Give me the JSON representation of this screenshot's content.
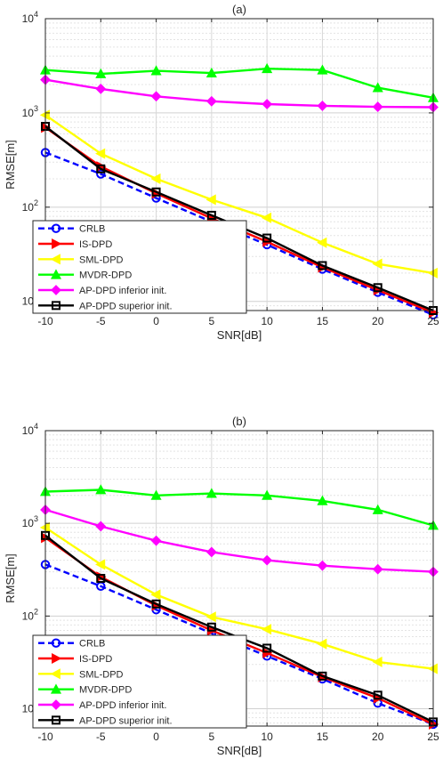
{
  "chart_data": [
    {
      "type": "line",
      "title": "(a)",
      "xlabel": "SNR[dB]",
      "ylabel": "RMSE[m]",
      "yscale": "log",
      "xlim": [
        -10,
        25
      ],
      "ylim": [
        8,
        10000
      ],
      "x": [
        -10,
        -5,
        0,
        5,
        10,
        15,
        20,
        25
      ],
      "x_tick_labels": [
        "-10",
        "-5",
        "0",
        "5",
        "10",
        "15",
        "20",
        "25"
      ],
      "y_ticks": [
        10,
        100,
        1000,
        10000
      ],
      "grid": true,
      "legend_position": "bottom-left",
      "series": [
        {
          "name": "CRLB",
          "color": "#0000ff",
          "dash": "dashed",
          "marker": "circle",
          "values": [
            380,
            225,
            125,
            70,
            40,
            22,
            12.5,
            7.2
          ]
        },
        {
          "name": "IS-DPD",
          "color": "#ff0000",
          "dash": "solid",
          "marker": "triangle-right",
          "values": [
            700,
            270,
            140,
            76,
            43,
            23,
            13.2,
            7.6
          ]
        },
        {
          "name": "SML-DPD",
          "color": "#ffff00",
          "dash": "solid",
          "marker": "triangle-left",
          "values": [
            950,
            370,
            200,
            120,
            77,
            42,
            25,
            20
          ]
        },
        {
          "name": "MVDR-DPD",
          "color": "#00ff00",
          "dash": "solid",
          "marker": "triangle-up",
          "values": [
            2850,
            2600,
            2800,
            2650,
            2950,
            2850,
            1850,
            1450
          ]
        },
        {
          "name": "AP-DPD inferior init.",
          "color": "#ff00ff",
          "dash": "solid",
          "marker": "diamond",
          "values": [
            2250,
            1800,
            1500,
            1330,
            1240,
            1190,
            1160,
            1150
          ]
        },
        {
          "name": "AP-DPD superior init.",
          "color": "#000000",
          "dash": "solid",
          "marker": "square",
          "values": [
            720,
            255,
            145,
            82,
            47,
            24,
            14,
            8
          ]
        }
      ]
    },
    {
      "type": "line",
      "title": "(b)",
      "xlabel": "SNR[dB]",
      "ylabel": "RMSE[m]",
      "yscale": "log",
      "xlim": [
        -10,
        25
      ],
      "ylim": [
        6.5,
        10000
      ],
      "x": [
        -10,
        -5,
        0,
        5,
        10,
        15,
        20,
        25
      ],
      "x_tick_labels": [
        "-10",
        "-5",
        "0",
        "5",
        "10",
        "15",
        "20",
        "25"
      ],
      "y_ticks": [
        10,
        100,
        1000,
        10000
      ],
      "grid": true,
      "legend_position": "bottom-left",
      "series": [
        {
          "name": "CRLB",
          "color": "#0000ff",
          "dash": "dashed",
          "marker": "circle",
          "values": [
            360,
            210,
            117,
            65,
            37,
            21,
            11.5,
            6.8
          ]
        },
        {
          "name": "IS-DPD",
          "color": "#ff0000",
          "dash": "solid",
          "marker": "triangle-right",
          "values": [
            700,
            265,
            130,
            70,
            40,
            22,
            13,
            6.8
          ]
        },
        {
          "name": "SML-DPD",
          "color": "#ffff00",
          "dash": "solid",
          "marker": "triangle-left",
          "values": [
            900,
            360,
            170,
            98,
            72,
            50,
            32,
            27
          ]
        },
        {
          "name": "MVDR-DPD",
          "color": "#00ff00",
          "dash": "solid",
          "marker": "triangle-up",
          "values": [
            2200,
            2300,
            2000,
            2100,
            2000,
            1750,
            1400,
            950
          ]
        },
        {
          "name": "AP-DPD inferior init.",
          "color": "#ff00ff",
          "dash": "solid",
          "marker": "diamond",
          "values": [
            1400,
            930,
            650,
            490,
            400,
            350,
            320,
            300
          ]
        },
        {
          "name": "AP-DPD superior init.",
          "color": "#000000",
          "dash": "solid",
          "marker": "square",
          "values": [
            740,
            255,
            135,
            76,
            45,
            22.5,
            14,
            7.2
          ]
        }
      ]
    }
  ]
}
